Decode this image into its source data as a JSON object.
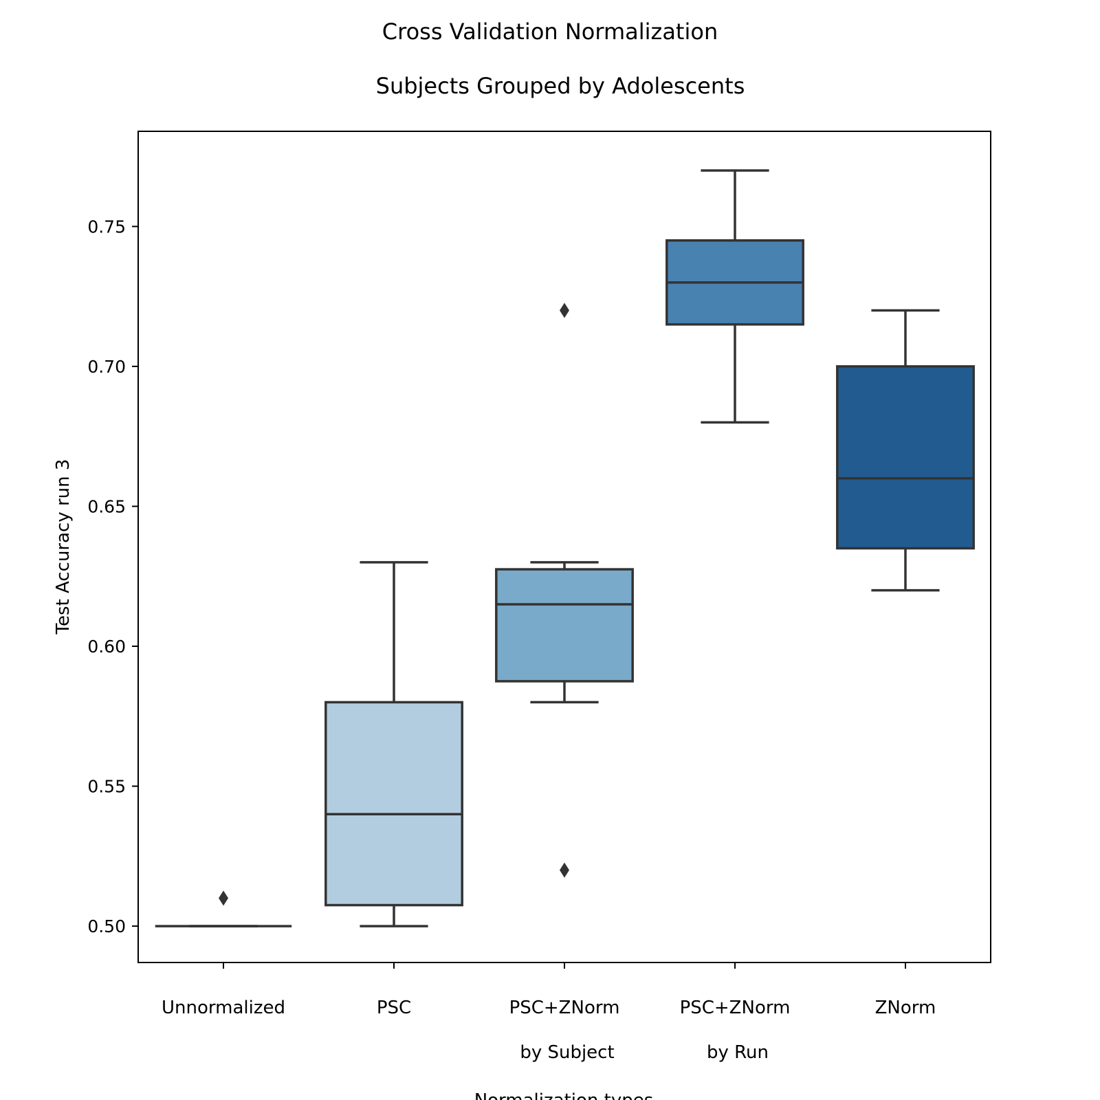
{
  "chart_data": {
    "type": "box",
    "title": "Cross Validation Normalization",
    "subtitle": "Subjects Grouped by Adolescents",
    "xlabel": "Normalization types",
    "ylabel": "Test Accuracy run 3",
    "ylim": [
      0.487,
      0.784
    ],
    "yticks": [
      0.5,
      0.55,
      0.6,
      0.65,
      0.7,
      0.75
    ],
    "ytick_labels": [
      "0.50",
      "0.55",
      "0.60",
      "0.65",
      "0.70",
      "0.75"
    ],
    "grid": false,
    "legend": "none",
    "categories": [
      [
        "Unnormalized"
      ],
      [
        "PSC"
      ],
      [
        "PSC+ZNorm",
        "by Subject"
      ],
      [
        "PSC+ZNorm",
        "by Run"
      ],
      [
        "ZNorm"
      ]
    ],
    "boxes": [
      {
        "whislo": 0.5,
        "q1": 0.5,
        "med": 0.5,
        "q3": 0.5,
        "whishi": 0.5,
        "fliers": [
          0.51
        ],
        "color": "#c6dbef"
      },
      {
        "whislo": 0.5,
        "q1": 0.5075,
        "med": 0.54,
        "q3": 0.58,
        "whishi": 0.63,
        "fliers": [],
        "color": "#b3cde0"
      },
      {
        "whislo": 0.58,
        "q1": 0.5875,
        "med": 0.615,
        "q3": 0.6275,
        "whishi": 0.63,
        "fliers": [
          0.52,
          0.72
        ],
        "color": "#7aaac9"
      },
      {
        "whislo": 0.68,
        "q1": 0.715,
        "med": 0.73,
        "q3": 0.745,
        "whishi": 0.77,
        "fliers": [],
        "color": "#4782b1"
      },
      {
        "whislo": 0.62,
        "q1": 0.635,
        "med": 0.66,
        "q3": 0.7,
        "whishi": 0.72,
        "fliers": [],
        "color": "#225b90"
      }
    ]
  }
}
